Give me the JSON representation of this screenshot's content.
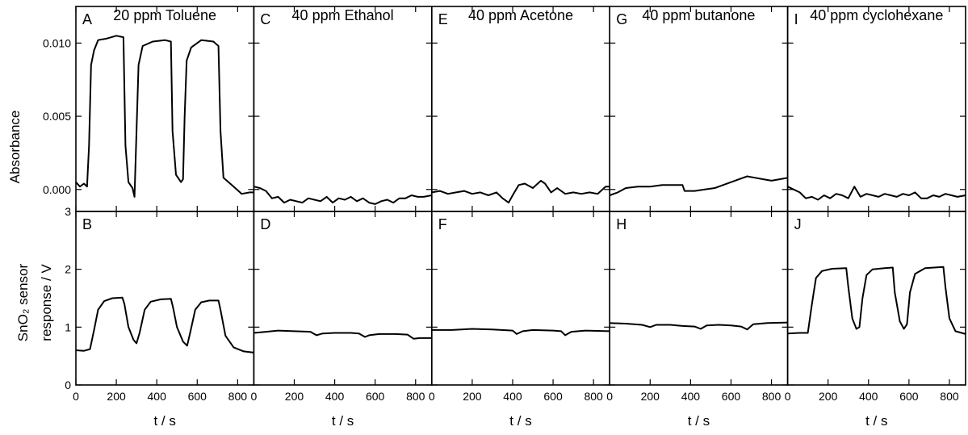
{
  "chart_data": {
    "type": "line",
    "x_unit_label": "t / s",
    "top_ylabel": "Absorbance",
    "bottom_ylabel_lines": [
      "SnO₂ sensor",
      "response / V"
    ],
    "top_ylim": [
      -0.0015,
      0.0125
    ],
    "top_yticks": [
      "0.000",
      "0.005",
      "0.010"
    ],
    "top_yticks_values": [
      0.0,
      0.005,
      0.01
    ],
    "bottom_ylim": [
      0,
      3
    ],
    "bottom_yticks": [
      "0",
      "1",
      "2",
      "3"
    ],
    "bottom_yticks_values": [
      0,
      1,
      2,
      3
    ],
    "xlim": [
      0,
      880
    ],
    "xticks_values": [
      0,
      200,
      400,
      600,
      800
    ],
    "xticks_labels": [
      "0",
      "200",
      "400",
      "600",
      "800"
    ],
    "columns": [
      {
        "title": "20 ppm Toluene",
        "top": {
          "letter": "A",
          "points": [
            [
              0,
              0.0005
            ],
            [
              20,
              0.0002
            ],
            [
              40,
              0.0004
            ],
            [
              55,
              0.0002
            ],
            [
              65,
              0.003
            ],
            [
              75,
              0.0085
            ],
            [
              90,
              0.0095
            ],
            [
              110,
              0.0102
            ],
            [
              150,
              0.0103
            ],
            [
              200,
              0.0105
            ],
            [
              235,
              0.0104
            ],
            [
              245,
              0.003
            ],
            [
              260,
              0.0005
            ],
            [
              280,
              0.0001
            ],
            [
              290,
              -0.0005
            ],
            [
              300,
              0.004
            ],
            [
              310,
              0.0085
            ],
            [
              330,
              0.0098
            ],
            [
              380,
              0.0101
            ],
            [
              440,
              0.0102
            ],
            [
              470,
              0.0101
            ],
            [
              478,
              0.004
            ],
            [
              495,
              0.001
            ],
            [
              520,
              0.0005
            ],
            [
              530,
              0.0007
            ],
            [
              538,
              0.005
            ],
            [
              548,
              0.0088
            ],
            [
              570,
              0.0097
            ],
            [
              620,
              0.0102
            ],
            [
              680,
              0.0101
            ],
            [
              705,
              0.0098
            ],
            [
              715,
              0.004
            ],
            [
              730,
              0.0008
            ],
            [
              780,
              0.0002
            ],
            [
              820,
              -0.0003
            ],
            [
              860,
              -0.0002
            ],
            [
              880,
              -0.0002
            ]
          ]
        },
        "bottom": {
          "letter": "B",
          "points": [
            [
              0,
              0.6
            ],
            [
              40,
              0.59
            ],
            [
              70,
              0.62
            ],
            [
              90,
              0.95
            ],
            [
              110,
              1.3
            ],
            [
              140,
              1.45
            ],
            [
              180,
              1.5
            ],
            [
              230,
              1.51
            ],
            [
              240,
              1.4
            ],
            [
              260,
              1.0
            ],
            [
              285,
              0.78
            ],
            [
              300,
              0.72
            ],
            [
              315,
              0.9
            ],
            [
              340,
              1.3
            ],
            [
              370,
              1.44
            ],
            [
              420,
              1.48
            ],
            [
              470,
              1.49
            ],
            [
              480,
              1.35
            ],
            [
              500,
              1.0
            ],
            [
              530,
              0.75
            ],
            [
              550,
              0.68
            ],
            [
              565,
              0.9
            ],
            [
              590,
              1.3
            ],
            [
              620,
              1.43
            ],
            [
              660,
              1.46
            ],
            [
              705,
              1.46
            ],
            [
              715,
              1.3
            ],
            [
              740,
              0.85
            ],
            [
              780,
              0.65
            ],
            [
              830,
              0.58
            ],
            [
              880,
              0.56
            ]
          ]
        }
      },
      {
        "title": "40 ppm Ethanol",
        "top": {
          "letter": "C",
          "points": [
            [
              0,
              0.0002
            ],
            [
              30,
              0.0001
            ],
            [
              60,
              -0.0001
            ],
            [
              90,
              -0.0006
            ],
            [
              120,
              -0.0005
            ],
            [
              150,
              -0.0009
            ],
            [
              180,
              -0.0007
            ],
            [
              210,
              -0.0008
            ],
            [
              240,
              -0.0009
            ],
            [
              270,
              -0.0006
            ],
            [
              300,
              -0.0007
            ],
            [
              330,
              -0.0008
            ],
            [
              360,
              -0.0005
            ],
            [
              390,
              -0.0009
            ],
            [
              420,
              -0.0006
            ],
            [
              450,
              -0.0007
            ],
            [
              480,
              -0.0005
            ],
            [
              510,
              -0.0008
            ],
            [
              540,
              -0.0006
            ],
            [
              570,
              -0.0009
            ],
            [
              600,
              -0.001
            ],
            [
              630,
              -0.0008
            ],
            [
              660,
              -0.0007
            ],
            [
              690,
              -0.0009
            ],
            [
              720,
              -0.0006
            ],
            [
              750,
              -0.0006
            ],
            [
              780,
              -0.0004
            ],
            [
              810,
              -0.0005
            ],
            [
              840,
              -0.0005
            ],
            [
              880,
              -0.0004
            ]
          ]
        },
        "bottom": {
          "letter": "D",
          "points": [
            [
              0,
              0.9
            ],
            [
              60,
              0.92
            ],
            [
              120,
              0.94
            ],
            [
              200,
              0.93
            ],
            [
              280,
              0.92
            ],
            [
              310,
              0.86
            ],
            [
              340,
              0.89
            ],
            [
              400,
              0.9
            ],
            [
              480,
              0.9
            ],
            [
              520,
              0.89
            ],
            [
              550,
              0.83
            ],
            [
              570,
              0.86
            ],
            [
              620,
              0.88
            ],
            [
              700,
              0.88
            ],
            [
              760,
              0.87
            ],
            [
              790,
              0.8
            ],
            [
              820,
              0.81
            ],
            [
              880,
              0.81
            ]
          ]
        }
      },
      {
        "title": "40 ppm Acetone",
        "top": {
          "letter": "E",
          "points": [
            [
              0,
              -0.0002
            ],
            [
              40,
              -0.0001
            ],
            [
              80,
              -0.0003
            ],
            [
              120,
              -0.0002
            ],
            [
              160,
              -0.0001
            ],
            [
              200,
              -0.0003
            ],
            [
              240,
              -0.0002
            ],
            [
              280,
              -0.0004
            ],
            [
              320,
              -0.0002
            ],
            [
              350,
              -0.0006
            ],
            [
              380,
              -0.0009
            ],
            [
              400,
              -0.0004
            ],
            [
              430,
              0.0003
            ],
            [
              460,
              0.0004
            ],
            [
              500,
              0.0001
            ],
            [
              540,
              0.0006
            ],
            [
              560,
              0.0004
            ],
            [
              590,
              -0.0002
            ],
            [
              620,
              0.0001
            ],
            [
              660,
              -0.0003
            ],
            [
              700,
              -0.0002
            ],
            [
              740,
              -0.0003
            ],
            [
              780,
              -0.0002
            ],
            [
              820,
              -0.0003
            ],
            [
              860,
              0.0002
            ],
            [
              880,
              0.0002
            ]
          ]
        },
        "bottom": {
          "letter": "F",
          "points": [
            [
              0,
              0.95
            ],
            [
              100,
              0.95
            ],
            [
              200,
              0.97
            ],
            [
              300,
              0.96
            ],
            [
              400,
              0.94
            ],
            [
              420,
              0.88
            ],
            [
              450,
              0.93
            ],
            [
              500,
              0.95
            ],
            [
              600,
              0.94
            ],
            [
              640,
              0.93
            ],
            [
              660,
              0.86
            ],
            [
              690,
              0.92
            ],
            [
              760,
              0.94
            ],
            [
              880,
              0.93
            ]
          ]
        }
      },
      {
        "title": "40 ppm butanone",
        "top": {
          "letter": "G",
          "points": [
            [
              0,
              -0.0004
            ],
            [
              40,
              -0.0002
            ],
            [
              80,
              0.0001
            ],
            [
              140,
              0.0002
            ],
            [
              200,
              0.0002
            ],
            [
              260,
              0.0003
            ],
            [
              320,
              0.0003
            ],
            [
              360,
              0.0003
            ],
            [
              370,
              -0.0001
            ],
            [
              420,
              -0.0001
            ],
            [
              470,
              0.0
            ],
            [
              520,
              0.0001
            ],
            [
              560,
              0.0003
            ],
            [
              600,
              0.0005
            ],
            [
              640,
              0.0007
            ],
            [
              680,
              0.0009
            ],
            [
              720,
              0.0008
            ],
            [
              760,
              0.0007
            ],
            [
              800,
              0.0006
            ],
            [
              840,
              0.0007
            ],
            [
              880,
              0.0008
            ]
          ]
        },
        "bottom": {
          "letter": "H",
          "points": [
            [
              0,
              1.07
            ],
            [
              80,
              1.06
            ],
            [
              160,
              1.04
            ],
            [
              200,
              1.0
            ],
            [
              230,
              1.04
            ],
            [
              300,
              1.04
            ],
            [
              360,
              1.02
            ],
            [
              420,
              1.01
            ],
            [
              450,
              0.97
            ],
            [
              480,
              1.03
            ],
            [
              540,
              1.04
            ],
            [
              600,
              1.03
            ],
            [
              650,
              1.01
            ],
            [
              680,
              0.96
            ],
            [
              710,
              1.05
            ],
            [
              780,
              1.07
            ],
            [
              880,
              1.08
            ]
          ]
        }
      },
      {
        "title": "40 ppm cyclohexane",
        "top": {
          "letter": "I",
          "points": [
            [
              0,
              0.0002
            ],
            [
              30,
              0.0
            ],
            [
              60,
              -0.0002
            ],
            [
              90,
              -0.0006
            ],
            [
              120,
              -0.0005
            ],
            [
              150,
              -0.0007
            ],
            [
              180,
              -0.0004
            ],
            [
              210,
              -0.0006
            ],
            [
              240,
              -0.0003
            ],
            [
              270,
              -0.0004
            ],
            [
              300,
              -0.0006
            ],
            [
              330,
              0.0002
            ],
            [
              360,
              -0.0005
            ],
            [
              390,
              -0.0003
            ],
            [
              420,
              -0.0004
            ],
            [
              450,
              -0.0005
            ],
            [
              480,
              -0.0003
            ],
            [
              510,
              -0.0004
            ],
            [
              540,
              -0.0005
            ],
            [
              570,
              -0.0003
            ],
            [
              600,
              -0.0004
            ],
            [
              630,
              -0.0002
            ],
            [
              660,
              -0.0006
            ],
            [
              690,
              -0.0006
            ],
            [
              720,
              -0.0004
            ],
            [
              750,
              -0.0005
            ],
            [
              780,
              -0.0003
            ],
            [
              810,
              -0.0004
            ],
            [
              840,
              -0.0005
            ],
            [
              880,
              -0.0004
            ]
          ]
        },
        "bottom": {
          "letter": "J",
          "points": [
            [
              0,
              0.89
            ],
            [
              60,
              0.9
            ],
            [
              100,
              0.9
            ],
            [
              120,
              1.4
            ],
            [
              140,
              1.85
            ],
            [
              170,
              1.97
            ],
            [
              220,
              2.01
            ],
            [
              290,
              2.02
            ],
            [
              300,
              1.7
            ],
            [
              320,
              1.15
            ],
            [
              340,
              0.97
            ],
            [
              355,
              1.0
            ],
            [
              370,
              1.5
            ],
            [
              390,
              1.9
            ],
            [
              420,
              2.0
            ],
            [
              480,
              2.02
            ],
            [
              520,
              2.03
            ],
            [
              530,
              1.6
            ],
            [
              555,
              1.1
            ],
            [
              575,
              0.97
            ],
            [
              590,
              1.05
            ],
            [
              605,
              1.6
            ],
            [
              630,
              1.92
            ],
            [
              680,
              2.02
            ],
            [
              770,
              2.04
            ],
            [
              780,
              1.7
            ],
            [
              800,
              1.15
            ],
            [
              830,
              0.93
            ],
            [
              880,
              0.88
            ]
          ]
        }
      }
    ]
  }
}
